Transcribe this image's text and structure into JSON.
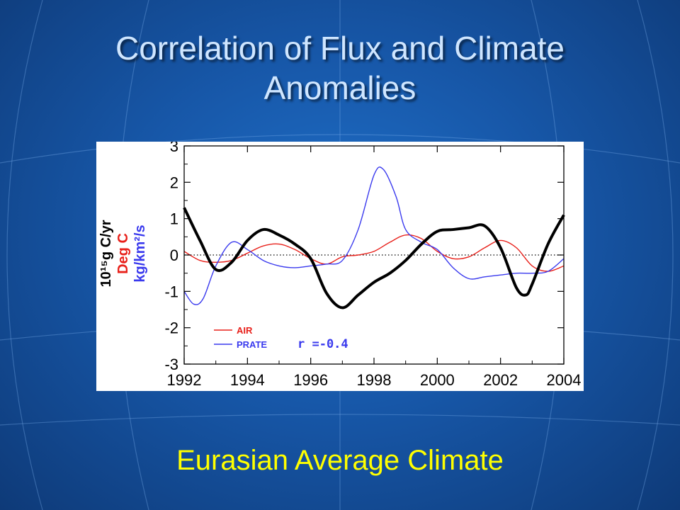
{
  "slide": {
    "title_line1": "Correlation of Flux and Climate",
    "title_line2": "Anomalies",
    "caption": "Eurasian Average Climate"
  },
  "chart_data": {
    "type": "line",
    "xlim": [
      1992,
      2004
    ],
    "ylim": [
      -3,
      3
    ],
    "xticks": [
      1992,
      1994,
      1996,
      1998,
      2000,
      2002,
      2004
    ],
    "yticks": [
      3,
      2,
      1,
      0,
      -1,
      -2,
      -3
    ],
    "ylabel_lines": [
      "10¹⁵g C/yr",
      "Deg C",
      "kg/km²/s"
    ],
    "annotation": "r =-0.4",
    "zero_line": "dotted",
    "legend_position": "bottom-left",
    "series": [
      {
        "name": "",
        "color": "#000000",
        "x": [
          1992.0,
          1992.5,
          1993.0,
          1993.5,
          1994.0,
          1994.5,
          1995.0,
          1995.5,
          1996.0,
          1996.5,
          1997.0,
          1997.5,
          1998.0,
          1998.5,
          1999.0,
          1999.5,
          2000.0,
          2000.5,
          2001.0,
          2001.5,
          2002.0,
          2002.5,
          2002.8,
          2003.0,
          2003.5,
          2004.0
        ],
        "y": [
          1.3,
          0.4,
          -0.4,
          -0.2,
          0.4,
          0.7,
          0.55,
          0.3,
          -0.1,
          -1.05,
          -1.45,
          -1.1,
          -0.75,
          -0.5,
          -0.15,
          0.3,
          0.65,
          0.7,
          0.75,
          0.8,
          0.2,
          -0.9,
          -1.1,
          -0.8,
          0.3,
          1.1
        ]
      },
      {
        "name": "AIR",
        "color": "#e8201a",
        "x": [
          1992.0,
          1992.5,
          1993.0,
          1993.5,
          1994.0,
          1994.5,
          1995.0,
          1995.5,
          1996.0,
          1996.5,
          1997.0,
          1997.5,
          1998.0,
          1998.5,
          1999.0,
          1999.5,
          2000.0,
          2000.5,
          2001.0,
          2001.5,
          2002.0,
          2002.5,
          2003.0,
          2003.5,
          2004.0
        ],
        "y": [
          0.1,
          -0.15,
          -0.2,
          -0.15,
          0.05,
          0.25,
          0.3,
          0.15,
          -0.1,
          -0.25,
          -0.05,
          0.0,
          0.1,
          0.35,
          0.55,
          0.45,
          0.1,
          -0.1,
          -0.05,
          0.2,
          0.4,
          0.2,
          -0.3,
          -0.45,
          -0.3
        ]
      },
      {
        "name": "PRATE",
        "color": "#3a3aee",
        "x": [
          1992.0,
          1992.3,
          1992.6,
          1993.0,
          1993.5,
          1994.0,
          1994.5,
          1995.0,
          1995.5,
          1996.0,
          1996.5,
          1997.0,
          1997.5,
          1998.0,
          1998.3,
          1998.7,
          1999.0,
          1999.5,
          2000.0,
          2000.5,
          2001.0,
          2001.5,
          2002.0,
          2002.5,
          2003.0,
          2003.5,
          2004.0
        ],
        "y": [
          -1.0,
          -1.35,
          -1.2,
          -0.3,
          0.35,
          0.15,
          -0.15,
          -0.3,
          -0.35,
          -0.3,
          -0.25,
          -0.15,
          0.7,
          2.2,
          2.35,
          1.6,
          0.7,
          0.35,
          0.15,
          -0.35,
          -0.65,
          -0.6,
          -0.55,
          -0.5,
          -0.5,
          -0.45,
          -0.1
        ]
      }
    ]
  }
}
